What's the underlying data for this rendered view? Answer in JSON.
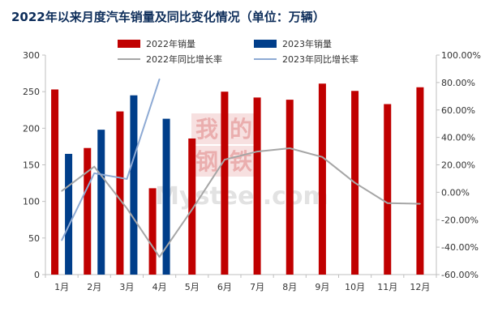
{
  "title": "2022年以来月度汽车销量及同比变化情况（单位：万辆）",
  "watermark": {
    "logo_text": "我的钢铁",
    "brand_text": "Mysteel.com"
  },
  "colors": {
    "sales_2022": "#c00000",
    "sales_2023": "#003e8a",
    "yoy_2022": "#a6a6a6",
    "yoy_2023": "#8eaad4",
    "axis": "#bfbfbf"
  },
  "chart_data": {
    "type": "bar",
    "title": "2022年以来月度汽车销量及同比变化情况（单位：万辆）",
    "categories": [
      "1月",
      "2月",
      "3月",
      "4月",
      "5月",
      "6月",
      "7月",
      "8月",
      "9月",
      "10月",
      "11月",
      "12月"
    ],
    "series": [
      {
        "name": "2022年销量",
        "type": "bar",
        "axis": "left",
        "values": [
          253,
          173,
          223,
          118,
          186,
          250,
          242,
          239,
          261,
          251,
          233,
          256
        ]
      },
      {
        "name": "2023年销量",
        "type": "bar",
        "axis": "left",
        "values": [
          165,
          198,
          245,
          213,
          null,
          null,
          null,
          null,
          null,
          null,
          null,
          null
        ]
      },
      {
        "name": "2022年同比增长率",
        "type": "line",
        "axis": "right",
        "values": [
          0.9,
          18.7,
          -11.7,
          -47.1,
          -12.6,
          23.8,
          29.7,
          32.1,
          25.7,
          6.9,
          -7.9,
          -8.4
        ]
      },
      {
        "name": "2023年同比增长率",
        "type": "line",
        "axis": "right",
        "values": [
          -35.0,
          13.9,
          9.7,
          82.5,
          null,
          null,
          null,
          null,
          null,
          null,
          null,
          null
        ]
      }
    ],
    "left_axis": {
      "min": 0,
      "max": 300,
      "ticks": [
        "0",
        "50",
        "100",
        "150",
        "200",
        "250",
        "300"
      ]
    },
    "right_axis": {
      "min": -60,
      "max": 100,
      "ticks": [
        "-60.00%",
        "-40.00%",
        "-20.00%",
        "0.00%",
        "20.00%",
        "40.00%",
        "60.00%",
        "80.00%",
        "100.00%"
      ]
    },
    "legend_position": "top",
    "grid": false
  }
}
